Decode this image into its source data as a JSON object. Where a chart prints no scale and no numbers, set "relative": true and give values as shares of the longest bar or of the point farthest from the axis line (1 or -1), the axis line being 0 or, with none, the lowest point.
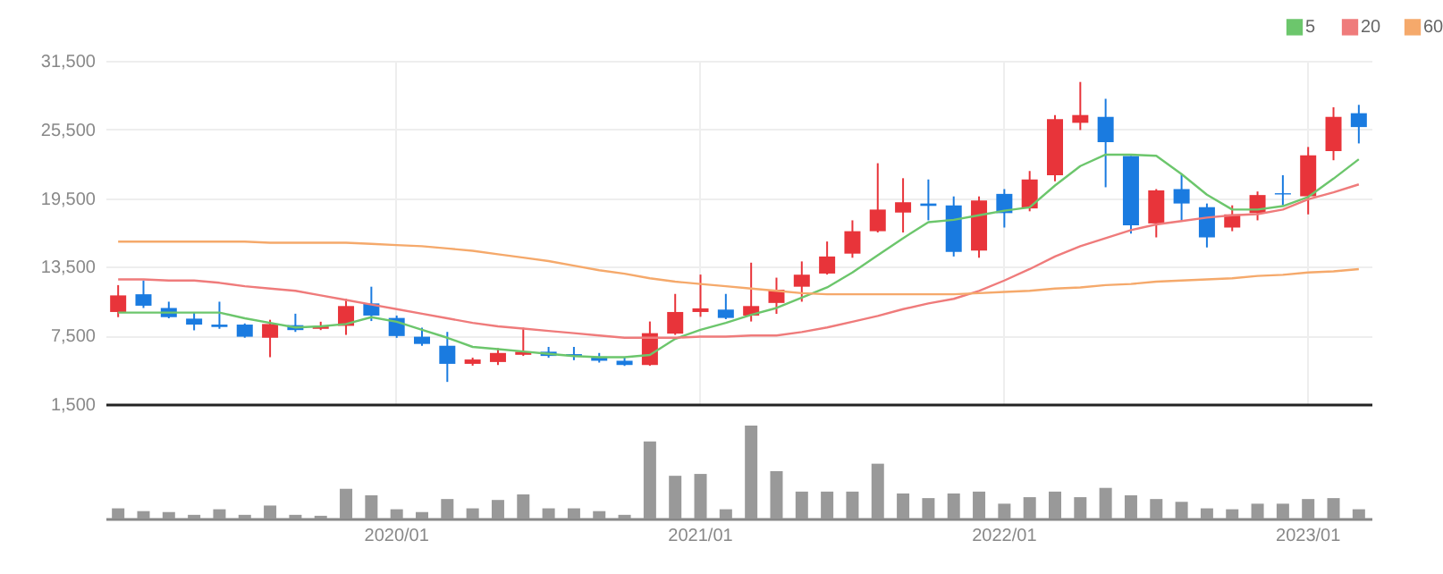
{
  "chart_data": [
    {
      "type": "candlestick",
      "categories": [
        null,
        null,
        null,
        null,
        null,
        null,
        null,
        null,
        null,
        null,
        null,
        "2020/01",
        null,
        null,
        null,
        null,
        null,
        null,
        null,
        null,
        null,
        null,
        null,
        "2021/01",
        null,
        null,
        null,
        null,
        null,
        null,
        null,
        null,
        null,
        null,
        null,
        "2022/01",
        null,
        null,
        null,
        null,
        null,
        null,
        null,
        null,
        null,
        null,
        null,
        "2023/01",
        null,
        null
      ],
      "ohlc": [
        [
          9550,
          11900,
          9100,
          11000
        ],
        [
          11100,
          12300,
          9900,
          10100
        ],
        [
          9900,
          10450,
          9000,
          9100
        ],
        [
          8970,
          9550,
          7950,
          8450
        ],
        [
          8450,
          10450,
          8080,
          8240
        ],
        [
          8450,
          8550,
          7300,
          7390
        ],
        [
          7300,
          8870,
          5600,
          8500
        ],
        [
          8400,
          9400,
          7810,
          7970
        ],
        [
          8080,
          8700,
          7970,
          8290
        ],
        [
          8340,
          10700,
          7550,
          10070
        ],
        [
          10300,
          11760,
          8760,
          9240
        ],
        [
          9030,
          9240,
          7290,
          7450
        ],
        [
          7390,
          8180,
          6600,
          6760
        ],
        [
          6600,
          7810,
          3440,
          5020
        ],
        [
          5020,
          5560,
          4860,
          5400
        ],
        [
          5180,
          6390,
          4920,
          5970
        ],
        [
          5810,
          8180,
          5710,
          6080
        ],
        [
          6080,
          6500,
          5550,
          5710
        ],
        [
          5870,
          6500,
          5340,
          5710
        ],
        [
          5650,
          5970,
          5130,
          5290
        ],
        [
          5290,
          5600,
          4840,
          4920
        ],
        [
          4920,
          8720,
          4850,
          7700
        ],
        [
          7660,
          11130,
          7550,
          9550
        ],
        [
          9550,
          12820,
          9130,
          9870
        ],
        [
          9760,
          11130,
          8920,
          9030
        ],
        [
          9240,
          13860,
          8720,
          10070
        ],
        [
          10340,
          12550,
          9390,
          11500
        ],
        [
          11760,
          13970,
          10450,
          12810
        ],
        [
          12910,
          15710,
          12820,
          14400
        ],
        [
          14650,
          17560,
          14290,
          16610
        ],
        [
          16610,
          22550,
          16500,
          18500
        ],
        [
          18240,
          21240,
          16500,
          19140
        ],
        [
          19030,
          21130,
          17560,
          18820
        ],
        [
          18870,
          19650,
          14400,
          14810
        ],
        [
          14920,
          19650,
          14290,
          19290
        ],
        [
          19870,
          20290,
          16930,
          18190
        ],
        [
          18600,
          21870,
          18350,
          21130
        ],
        [
          21500,
          26760,
          20970,
          26400
        ],
        [
          26080,
          29650,
          25450,
          26760
        ],
        [
          26600,
          28180,
          20450,
          24390
        ],
        [
          23180,
          23180,
          16400,
          17130
        ],
        [
          17290,
          20290,
          16070,
          20180
        ],
        [
          20290,
          21660,
          17560,
          19030
        ],
        [
          18710,
          19030,
          15190,
          16070
        ],
        [
          16930,
          18870,
          16610,
          18080
        ],
        [
          18190,
          20080,
          17560,
          19770
        ],
        [
          19930,
          21500,
          18870,
          19820
        ],
        [
          19660,
          23970,
          18080,
          23240
        ],
        [
          23610,
          27440,
          22810,
          26600
        ],
        [
          26920,
          27650,
          24280,
          25710
        ]
      ],
      "series": [
        {
          "name": "5",
          "type": "line",
          "color": "#6cc66c",
          "values": [
            9500,
            9500,
            9500,
            9500,
            9500,
            9000,
            8600,
            8200,
            8300,
            8500,
            9100,
            8700,
            8000,
            7300,
            6500,
            6300,
            6100,
            5900,
            5700,
            5600,
            5600,
            5800,
            7200,
            8000,
            8600,
            9300,
            9900,
            10800,
            11700,
            13000,
            14500,
            16000,
            17400,
            17600,
            18000,
            18400,
            18700,
            20600,
            22300,
            23300,
            23300,
            23200,
            21600,
            19800,
            18500,
            18500,
            18800,
            19600,
            21200,
            22900
          ]
        },
        {
          "name": "20",
          "type": "line",
          "color": "#ef7b7b",
          "values": [
            12400,
            12400,
            12300,
            12300,
            12100,
            11800,
            11600,
            11400,
            11000,
            10600,
            10200,
            9800,
            9400,
            9000,
            8600,
            8300,
            8100,
            7900,
            7700,
            7500,
            7300,
            7300,
            7300,
            7400,
            7400,
            7500,
            7500,
            7800,
            8200,
            8700,
            9200,
            9800,
            10300,
            10700,
            11400,
            12300,
            13300,
            14400,
            15300,
            16000,
            16700,
            17200,
            17500,
            17800,
            18000,
            18100,
            18500,
            19400,
            20000,
            20700
          ]
        },
        {
          "name": "60",
          "type": "line",
          "color": "#f5a96b",
          "values": [
            15700,
            15700,
            15700,
            15700,
            15700,
            15700,
            15600,
            15600,
            15600,
            15600,
            15500,
            15400,
            15300,
            15100,
            14900,
            14600,
            14300,
            14000,
            13600,
            13200,
            12900,
            12500,
            12200,
            12000,
            11800,
            11600,
            11400,
            11200,
            11100,
            11100,
            11100,
            11100,
            11100,
            11100,
            11200,
            11300,
            11400,
            11600,
            11700,
            11900,
            12000,
            12200,
            12300,
            12400,
            12500,
            12700,
            12800,
            13000,
            13100,
            13300
          ]
        }
      ],
      "ylim": [
        1500,
        31500
      ],
      "yticks": [
        {
          "value": 1500,
          "label": "1,500"
        },
        {
          "value": 7500,
          "label": "7,500"
        },
        {
          "value": 13500,
          "label": "13,500"
        },
        {
          "value": 19500,
          "label": "19,500"
        },
        {
          "value": 25500,
          "label": "25,500"
        },
        {
          "value": 31500,
          "label": "31,500"
        }
      ],
      "grid": true,
      "legend": "top right",
      "tick_labels": "y"
    },
    {
      "type": "bar",
      "relative": true,
      "color": "#999999",
      "categories": [
        null,
        null,
        null,
        null,
        null,
        null,
        null,
        null,
        null,
        null,
        null,
        "2020/01",
        null,
        null,
        null,
        null,
        null,
        null,
        null,
        null,
        null,
        null,
        null,
        "2021/01",
        null,
        null,
        null,
        null,
        null,
        null,
        null,
        null,
        null,
        null,
        null,
        "2022/01",
        null,
        null,
        null,
        null,
        null,
        null,
        null,
        null,
        null,
        null,
        null,
        "2023/01",
        null,
        null
      ],
      "values": [
        0.11,
        0.08,
        0.07,
        0.04,
        0.1,
        0.04,
        0.14,
        0.04,
        0.03,
        0.32,
        0.25,
        0.1,
        0.07,
        0.21,
        0.11,
        0.2,
        0.26,
        0.11,
        0.11,
        0.08,
        0.04,
        0.83,
        0.46,
        0.48,
        0.1,
        1,
        0.51,
        0.29,
        0.29,
        0.29,
        0.59,
        0.27,
        0.22,
        0.27,
        0.29,
        0.16,
        0.23,
        0.29,
        0.23,
        0.33,
        0.25,
        0.21,
        0.18,
        0.11,
        0.1,
        0.16,
        0.16,
        0.21,
        0.22,
        0.1
      ],
      "tick_labels": "x"
    }
  ]
}
